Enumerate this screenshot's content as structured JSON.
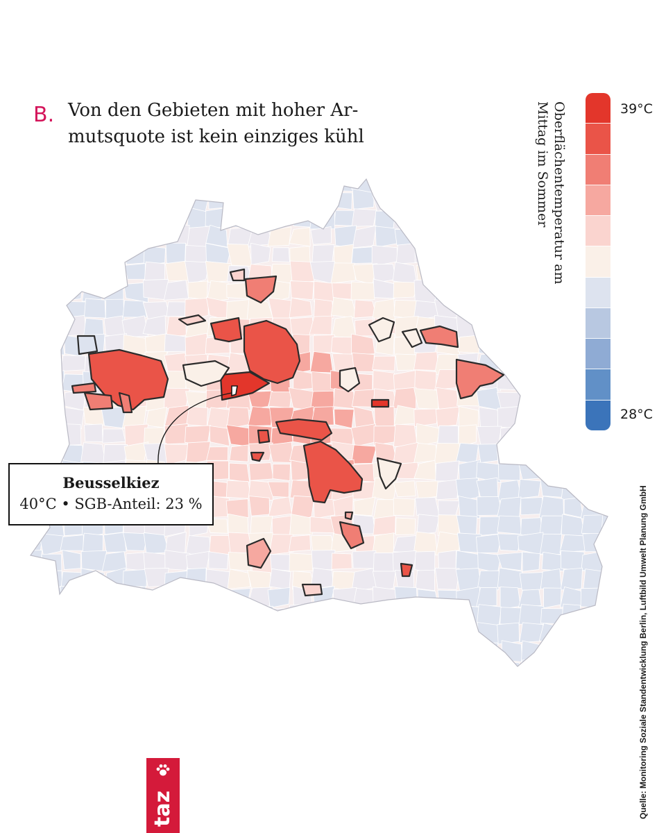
{
  "header": {
    "letter": "B.",
    "title": "Von den Gebieten mit hoher Ar­mutsquote ist kein einziges kühl"
  },
  "legend": {
    "title": "Oberflächentemperatur am Mittag im Sommer",
    "max_label": "39°C",
    "min_label": "28°C",
    "colors": [
      "#e3362b",
      "#ea5448",
      "#f07e74",
      "#f6a8a0",
      "#fad4cf",
      "#faf0e8",
      "#dde3ef",
      "#b8c8e1",
      "#8fabd4",
      "#6190c7",
      "#3b74ba"
    ]
  },
  "callout": {
    "name": "Beusselkiez",
    "detail": "40°C • SGB-Anteil: 23 %"
  },
  "source": "Quelle: Monitoring Soziale Standentwicklung Berlin, Luftbild Umwelt Planung GmbH",
  "logo": {
    "text": "taz"
  },
  "colors": {
    "accent": "#d4145a",
    "logo_red": "#d41a3a",
    "hot": "#e3362b",
    "cool": "#dde3ef"
  }
}
